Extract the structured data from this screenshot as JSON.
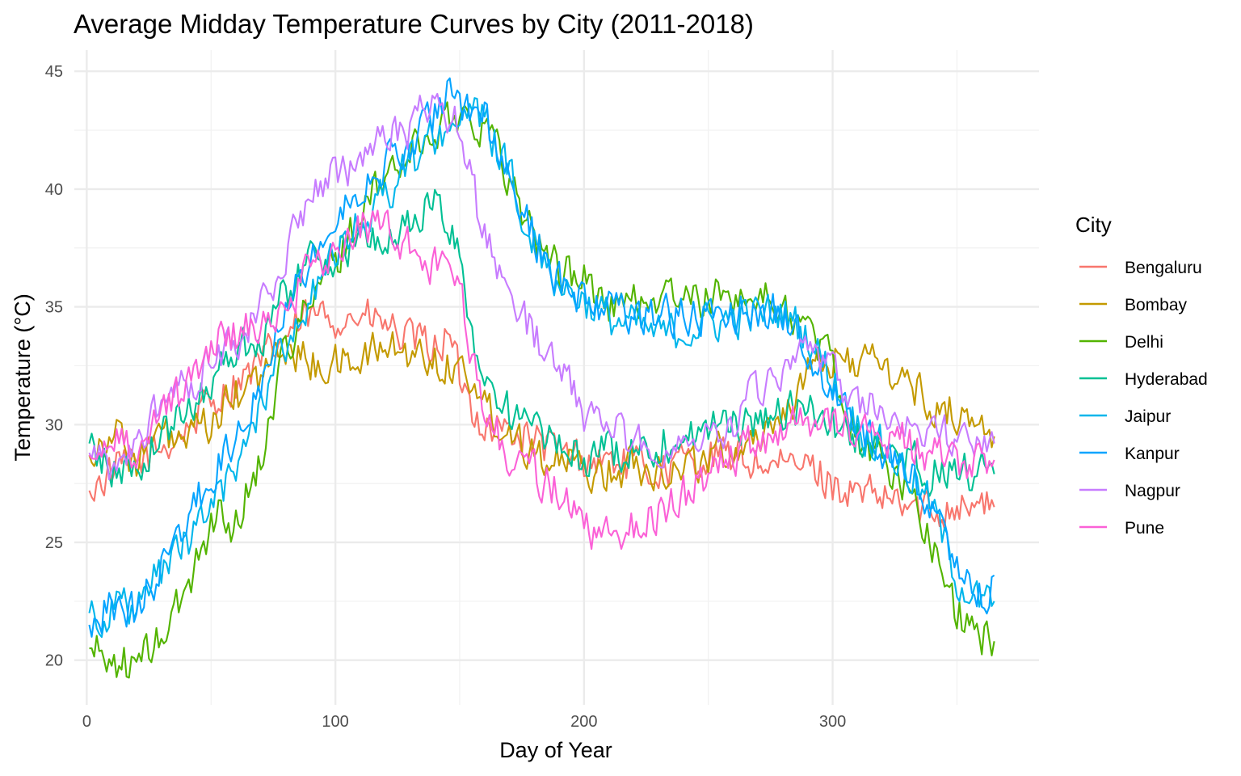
{
  "chart_data": {
    "type": "line",
    "title": "Average Midday Temperature Curves by City (2011-2018)",
    "xlabel": "Day of Year",
    "ylabel": "Temperature (°C)",
    "xlim": [
      -5,
      383
    ],
    "ylim": [
      18.1,
      45.9
    ],
    "x_ticks": [
      0,
      100,
      200,
      300
    ],
    "y_ticks": [
      20,
      25,
      30,
      35,
      40,
      45
    ],
    "x_tick_labels": [
      "0",
      "100",
      "200",
      "300"
    ],
    "y_tick_labels": [
      "20",
      "25",
      "30",
      "35",
      "40",
      "45"
    ],
    "grid": true,
    "legend": {
      "title": "City",
      "position": "right"
    },
    "series": [
      {
        "name": "Bengaluru",
        "color": "#F8766D",
        "x": [
          1,
          10,
          20,
          30,
          40,
          50,
          60,
          70,
          80,
          90,
          100,
          110,
          120,
          130,
          140,
          145,
          150,
          155,
          160,
          170,
          180,
          190,
          200,
          210,
          220,
          230,
          240,
          250,
          260,
          270,
          280,
          290,
          300,
          310,
          320,
          330,
          340,
          350,
          365
        ],
        "y": [
          27.2,
          28.0,
          28.3,
          29.0,
          29.8,
          31.0,
          31.8,
          32.5,
          33.8,
          34.5,
          34.6,
          34.6,
          34.2,
          33.5,
          33.3,
          33.8,
          32.0,
          30.8,
          30.0,
          29.7,
          29.3,
          28.8,
          28.5,
          28.5,
          28.2,
          28.0,
          28.4,
          28.6,
          28.6,
          28.4,
          28.1,
          28.3,
          27.5,
          27.0,
          26.8,
          26.5,
          26.3,
          26.7,
          26.5
        ]
      },
      {
        "name": "Bombay",
        "color": "#C49A00",
        "x": [
          1,
          10,
          20,
          30,
          40,
          50,
          60,
          70,
          80,
          90,
          100,
          110,
          120,
          130,
          140,
          150,
          155,
          160,
          170,
          180,
          190,
          200,
          210,
          220,
          230,
          240,
          250,
          260,
          270,
          280,
          290,
          300,
          310,
          320,
          330,
          340,
          350,
          365
        ],
        "y": [
          28.7,
          29.8,
          28.5,
          29.5,
          29.2,
          30.0,
          31.2,
          32.0,
          33.3,
          32.6,
          32.5,
          32.8,
          33.3,
          33.0,
          32.8,
          32.4,
          32.0,
          30.8,
          29.8,
          29.0,
          28.4,
          28.0,
          28.0,
          28.3,
          28.2,
          28.2,
          28.6,
          29.0,
          29.5,
          30.5,
          32.0,
          32.8,
          32.8,
          32.4,
          31.8,
          30.8,
          30.5,
          29.5
        ]
      },
      {
        "name": "Delhi",
        "color": "#53B400",
        "x": [
          1,
          10,
          20,
          30,
          40,
          45,
          50,
          55,
          59,
          60,
          70,
          75,
          80,
          90,
          100,
          110,
          120,
          130,
          140,
          150,
          160,
          170,
          180,
          190,
          200,
          210,
          220,
          230,
          240,
          250,
          260,
          270,
          280,
          290,
          300,
          310,
          320,
          330,
          340,
          350,
          360,
          365
        ],
        "y": [
          20.5,
          20.0,
          19.7,
          21.0,
          22.8,
          24.5,
          25.8,
          26.5,
          24.8,
          26.0,
          28.5,
          31.0,
          33.5,
          35.0,
          37.0,
          38.8,
          40.5,
          41.5,
          42.5,
          43.2,
          42.8,
          40.5,
          38.0,
          36.5,
          36.2,
          35.0,
          35.2,
          35.5,
          35.3,
          35.2,
          35.6,
          35.4,
          35.0,
          34.0,
          32.5,
          29.5,
          28.5,
          27.2,
          25.0,
          22.0,
          21.0,
          20.8
        ]
      },
      {
        "name": "Hyderabad",
        "color": "#00C094",
        "x": [
          1,
          10,
          20,
          30,
          40,
          50,
          60,
          70,
          80,
          90,
          100,
          110,
          120,
          130,
          140,
          145,
          150,
          155,
          160,
          170,
          180,
          190,
          200,
          210,
          220,
          230,
          240,
          250,
          260,
          270,
          280,
          290,
          300,
          310,
          320,
          330,
          340,
          350,
          365
        ],
        "y": [
          29.2,
          28.0,
          28.2,
          29.5,
          30.5,
          32.0,
          33.2,
          33.8,
          35.5,
          37.0,
          37.2,
          37.8,
          37.8,
          38.5,
          39.5,
          38.5,
          37.0,
          34.0,
          32.0,
          30.5,
          29.7,
          29.0,
          28.6,
          28.8,
          29.0,
          29.2,
          29.5,
          29.8,
          30.0,
          30.2,
          30.5,
          30.6,
          30.0,
          29.5,
          28.8,
          28.5,
          28.0,
          28.0,
          27.9
        ]
      },
      {
        "name": "Jaipur",
        "color": "#00B6EB",
        "x": [
          1,
          10,
          20,
          30,
          40,
          50,
          60,
          70,
          80,
          90,
          100,
          110,
          120,
          130,
          140,
          150,
          160,
          170,
          180,
          190,
          200,
          210,
          220,
          230,
          240,
          250,
          260,
          270,
          280,
          290,
          300,
          310,
          320,
          330,
          340,
          350,
          360,
          365
        ],
        "y": [
          22.0,
          22.2,
          22.0,
          23.8,
          25.0,
          26.5,
          28.0,
          31.0,
          33.5,
          35.5,
          37.0,
          38.5,
          39.8,
          41.0,
          42.2,
          43.2,
          43.0,
          40.5,
          38.0,
          36.0,
          35.3,
          34.5,
          34.2,
          33.8,
          34.0,
          34.3,
          34.5,
          34.7,
          34.8,
          33.8,
          32.0,
          30.0,
          29.0,
          28.0,
          26.5,
          23.5,
          22.3,
          22.5
        ]
      },
      {
        "name": "Kanpur",
        "color": "#06A4FF",
        "x": [
          1,
          10,
          20,
          30,
          40,
          50,
          60,
          70,
          80,
          90,
          100,
          110,
          120,
          130,
          140,
          145,
          150,
          160,
          170,
          180,
          190,
          200,
          210,
          220,
          230,
          240,
          250,
          260,
          270,
          280,
          290,
          300,
          310,
          320,
          330,
          340,
          350,
          360,
          365
        ],
        "y": [
          21.5,
          22.5,
          22.0,
          24.0,
          25.8,
          27.8,
          29.5,
          32.0,
          35.5,
          37.0,
          38.5,
          40.2,
          41.0,
          41.8,
          43.0,
          44.5,
          43.5,
          43.0,
          40.0,
          38.0,
          36.2,
          35.2,
          35.0,
          34.8,
          34.7,
          34.6,
          34.5,
          34.8,
          34.9,
          34.7,
          33.0,
          31.5,
          30.0,
          28.8,
          28.0,
          26.5,
          24.0,
          22.5,
          23.6
        ]
      },
      {
        "name": "Nagpur",
        "color": "#C77CFF",
        "x": [
          1,
          10,
          20,
          30,
          40,
          50,
          60,
          70,
          80,
          90,
          100,
          110,
          120,
          130,
          140,
          150,
          155,
          160,
          170,
          180,
          190,
          200,
          210,
          220,
          230,
          240,
          250,
          260,
          270,
          280,
          290,
          300,
          310,
          320,
          330,
          340,
          350,
          365
        ],
        "y": [
          28.8,
          27.8,
          29.2,
          31.0,
          31.5,
          32.8,
          33.6,
          34.8,
          37.5,
          39.5,
          40.5,
          41.2,
          42.0,
          42.5,
          43.8,
          42.5,
          40.0,
          38.0,
          35.5,
          33.8,
          32.2,
          30.5,
          29.8,
          29.3,
          29.0,
          29.2,
          29.6,
          30.2,
          31.5,
          32.3,
          32.8,
          32.0,
          31.0,
          30.5,
          30.2,
          29.8,
          29.2,
          29.2
        ]
      },
      {
        "name": "Pune",
        "color": "#FB61D7",
        "x": [
          1,
          10,
          20,
          30,
          40,
          50,
          60,
          70,
          80,
          90,
          100,
          110,
          120,
          130,
          140,
          150,
          155,
          160,
          170,
          180,
          190,
          200,
          210,
          220,
          230,
          240,
          250,
          260,
          270,
          280,
          290,
          300,
          310,
          320,
          330,
          340,
          350,
          365
        ],
        "y": [
          28.7,
          29.3,
          29.0,
          30.5,
          31.5,
          33.5,
          33.8,
          34.2,
          35.2,
          36.5,
          37.2,
          38.5,
          38.3,
          37.5,
          36.8,
          35.5,
          33.0,
          30.5,
          28.8,
          28.0,
          27.0,
          25.5,
          25.5,
          25.8,
          26.3,
          27.0,
          27.8,
          28.5,
          29.3,
          29.8,
          30.2,
          30.2,
          29.8,
          29.5,
          29.2,
          28.8,
          28.5,
          28.5
        ]
      }
    ]
  }
}
